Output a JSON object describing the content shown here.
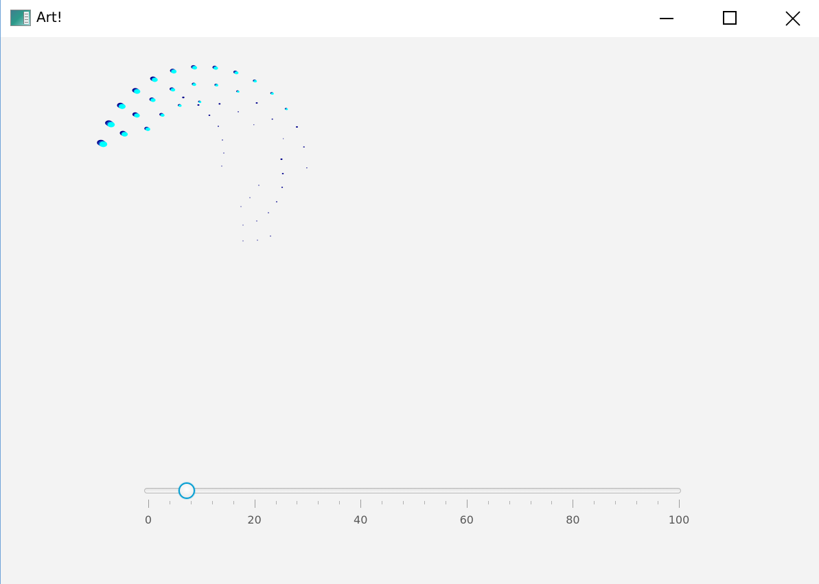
{
  "window": {
    "title": "Art!",
    "app_icon": "app-image-icon",
    "controls": {
      "minimize": "minimize-icon",
      "maximize": "maximize-icon",
      "close": "close-icon"
    }
  },
  "colors": {
    "background": "#f3f3f3",
    "accent": "#039ed3",
    "dot_dark": "#00008b",
    "dot_mid": "#1e50c8",
    "dot_light": "#00ffff"
  },
  "slider": {
    "min": 0,
    "max": 100,
    "value": 7.3,
    "major_tick_unit": 20,
    "minor_tick_count": 4,
    "tick_labels": [
      "0",
      "20",
      "40",
      "60",
      "80",
      "100"
    ]
  }
}
